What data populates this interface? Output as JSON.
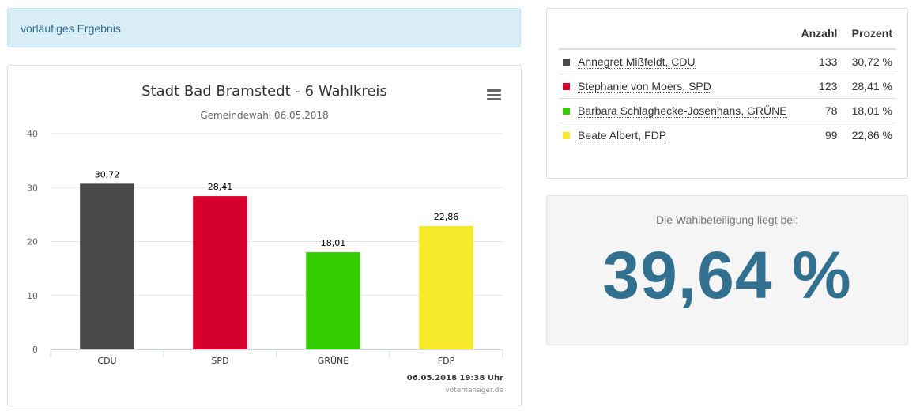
{
  "alert": {
    "text": "vorläufiges Ergebnis"
  },
  "chart": {
    "title": "Stadt Bad Bramstedt - 6 Wahlkreis",
    "subtitle": "Gemeindewahl 06.05.2018",
    "timestamp": "06.05.2018 19:38 Uhr",
    "credits": "votemanager.de",
    "menu_icon": "hamburger-menu-icon"
  },
  "chart_data": {
    "type": "bar",
    "categories": [
      "CDU",
      "SPD",
      "GRÜNE",
      "FDP"
    ],
    "values": [
      30.72,
      28.41,
      18.01,
      22.86
    ],
    "labels": [
      "30,72",
      "28,41",
      "18,01",
      "22,86"
    ],
    "colors": [
      "#4a4a4a",
      "#d5002b",
      "#33cc00",
      "#f7e92b"
    ],
    "title": "Stadt Bad Bramstedt - 6 Wahlkreis",
    "subtitle": "Gemeindewahl 06.05.2018",
    "ylim": [
      0,
      40
    ],
    "yticks": [
      0,
      10,
      20,
      30,
      40
    ],
    "grid": true
  },
  "results": {
    "headers": {
      "anzahl": "Anzahl",
      "prozent": "Prozent"
    },
    "rows": [
      {
        "name": "Annegret Mißfeldt, CDU",
        "count": "133",
        "percent": "30,72 %",
        "color": "#4a4a4a"
      },
      {
        "name": "Stephanie von Moers, SPD",
        "count": "123",
        "percent": "28,41 %",
        "color": "#d5002b"
      },
      {
        "name": "Barbara Schlaghecke-Josenhans, GRÜNE",
        "count": "78",
        "percent": "18,01 %",
        "color": "#33cc00"
      },
      {
        "name": "Beate Albert, FDP",
        "count": "99",
        "percent": "22,86 %",
        "color": "#f7e92b"
      }
    ]
  },
  "turnout": {
    "label": "Die Wahlbeteiligung liegt bei:",
    "value": "39,64 %"
  }
}
